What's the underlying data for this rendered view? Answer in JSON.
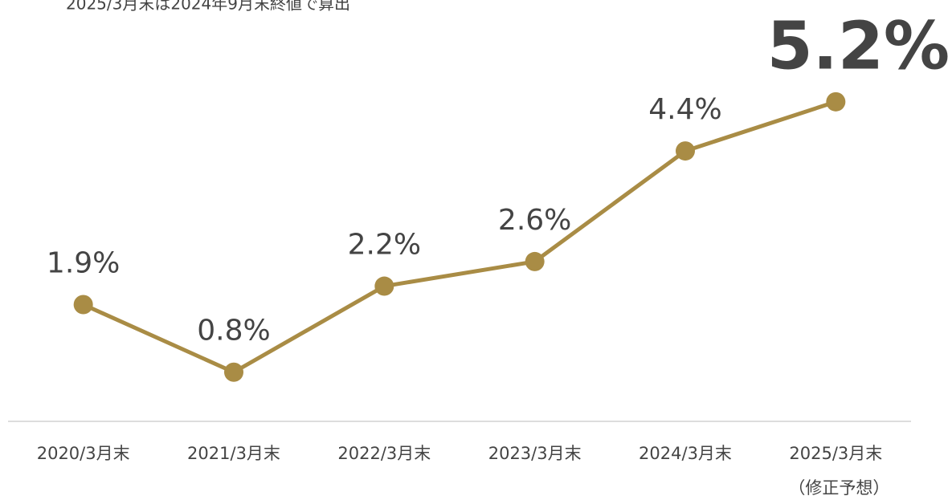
{
  "chart_data": {
    "type": "line",
    "note": "2025/3月末は2024年9月末終値で算出",
    "categories": [
      "2020/3月末",
      "2021/3月末",
      "2022/3月末",
      "2023/3月末",
      "2024/3月末",
      "2025/3月末"
    ],
    "x_sublabel": "（修正予想）",
    "series": [
      {
        "color": "#a98c45",
        "values": [
          1.9,
          0.8,
          2.2,
          2.6,
          4.4,
          5.2
        ],
        "value_labels": [
          "1.9%",
          "0.8%",
          "2.2%",
          "2.6%",
          "4.4%",
          "5.2%"
        ]
      }
    ],
    "emphasized": 5,
    "ylim": [
      0,
      7
    ]
  }
}
